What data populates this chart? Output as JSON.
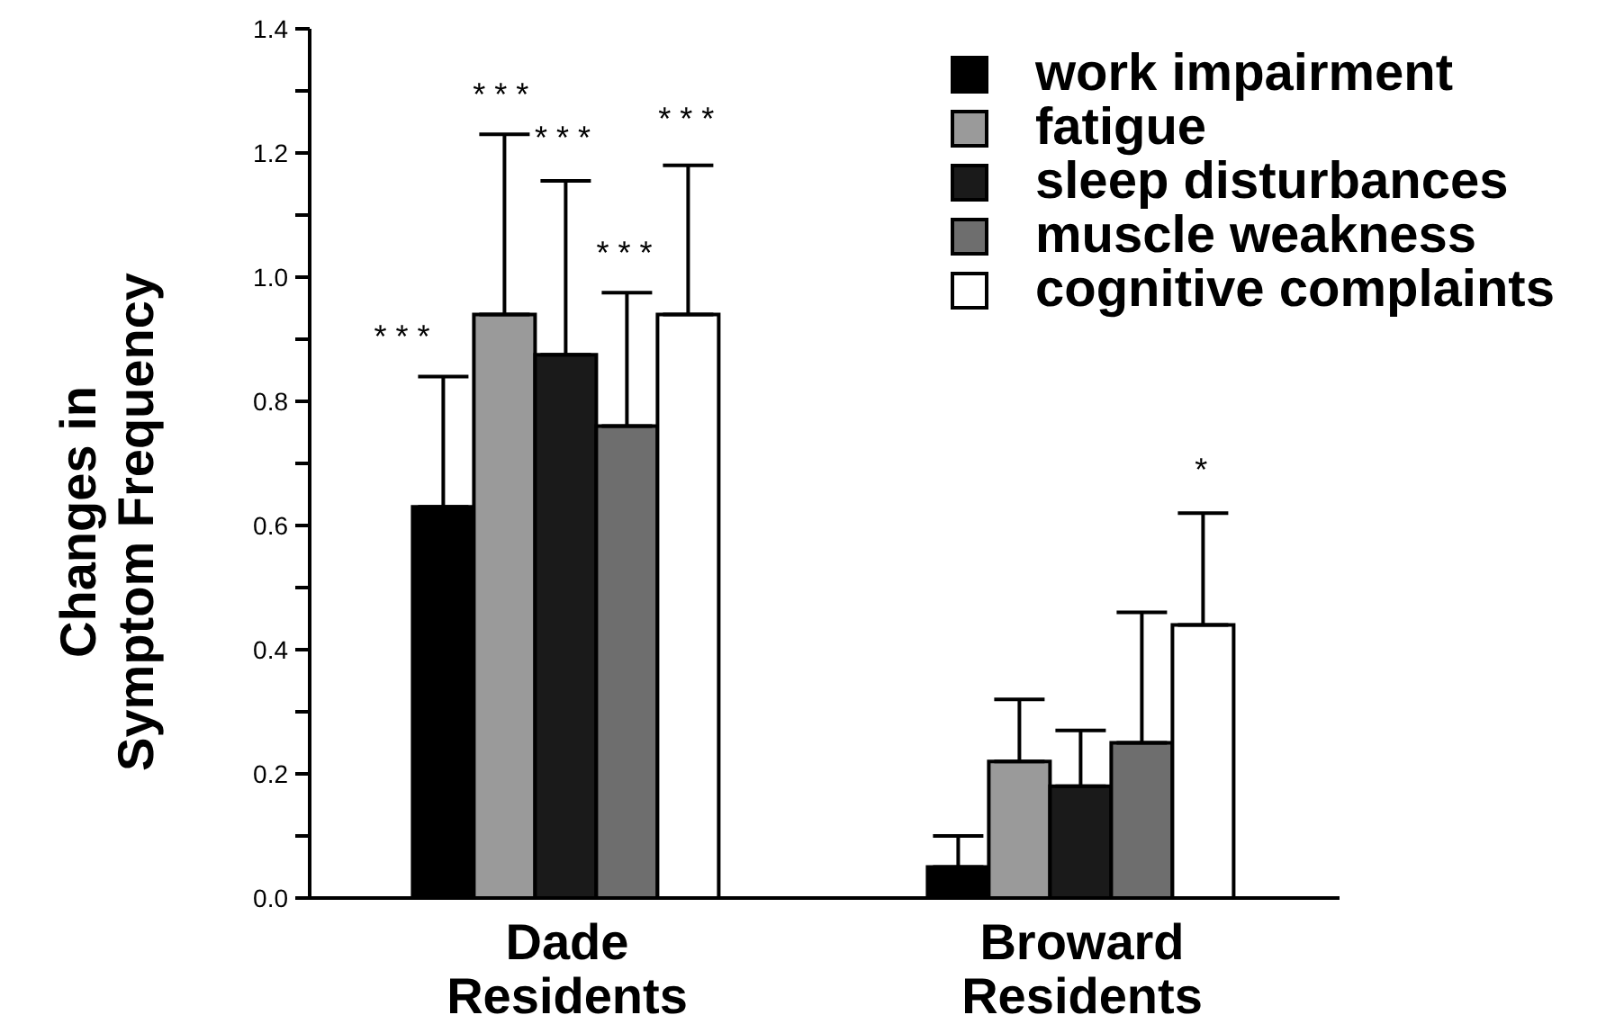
{
  "chart_data": {
    "type": "bar",
    "ylabel": "Changes in\nSymptom Frequency",
    "categories": [
      "Dade\nResidents",
      "Broward\nResidents"
    ],
    "series": [
      {
        "name": "work impairment",
        "color": "#000000",
        "values": [
          0.63,
          0.05
        ],
        "errors": [
          [
            0.63,
            0.84
          ],
          [
            0.05,
            0.1
          ]
        ]
      },
      {
        "name": "fatigue",
        "color": "#9a9a9a",
        "values": [
          0.94,
          0.22
        ],
        "errors": [
          [
            0.94,
            1.23
          ],
          [
            0.22,
            0.32
          ]
        ]
      },
      {
        "name": "sleep disturbances",
        "color": "#1a1a1a",
        "values": [
          0.875,
          0.18
        ],
        "errors": [
          [
            0.875,
            1.155
          ],
          [
            0.18,
            0.27
          ]
        ]
      },
      {
        "name": "muscle weakness",
        "color": "#6e6e6e",
        "values": [
          0.76,
          0.25
        ],
        "errors": [
          [
            0.76,
            0.975
          ],
          [
            0.25,
            0.46
          ]
        ]
      },
      {
        "name": "cognitive complaints",
        "color": "#ffffff",
        "values": [
          0.94,
          0.44
        ],
        "errors": [
          [
            0.94,
            1.18
          ],
          [
            0.44,
            0.62
          ]
        ]
      }
    ],
    "ylim": [
      0,
      1.4
    ],
    "yticks": [
      {
        "value": 0,
        "label": "0.0"
      },
      {
        "value": 0.1,
        "label": null
      },
      {
        "value": 0.2,
        "label": "0.2"
      },
      {
        "value": 0.3,
        "label": null
      },
      {
        "value": 0.4,
        "label": "0.4"
      },
      {
        "value": 0.5,
        "label": null
      },
      {
        "value": 0.6,
        "label": "0.6"
      },
      {
        "value": 0.7,
        "label": null
      },
      {
        "value": 0.8,
        "label": "0.8"
      },
      {
        "value": 0.9,
        "label": null
      },
      {
        "value": 1.0,
        "label": "1.0"
      },
      {
        "value": 1.1,
        "label": null
      },
      {
        "value": 1.2,
        "label": "1.2"
      },
      {
        "value": 1.3,
        "label": null
      },
      {
        "value": 1.4,
        "label": "1.4"
      }
    ],
    "annotations": [
      "***",
      "***",
      "***",
      "***",
      "***",
      "*"
    ],
    "legend": "top right",
    "grid": false
  }
}
